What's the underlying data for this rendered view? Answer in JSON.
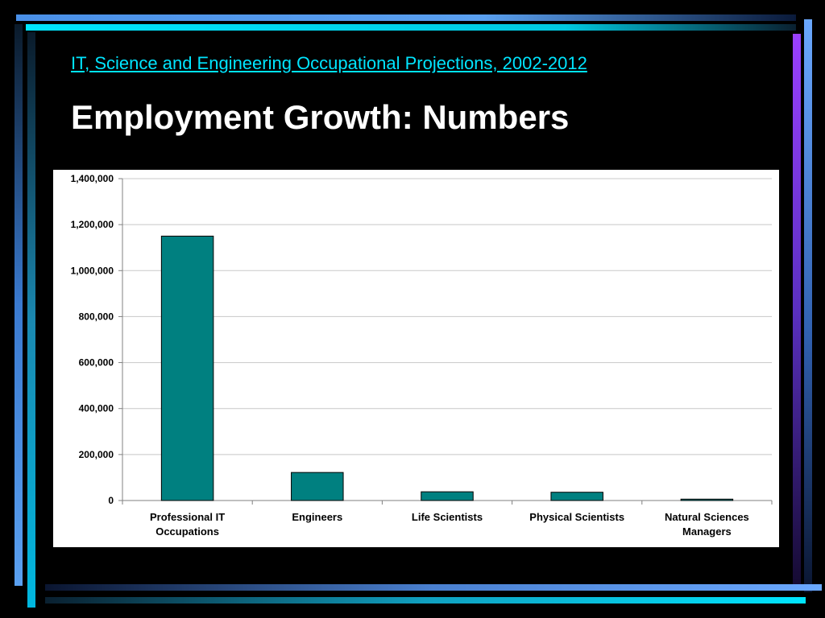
{
  "slide": {
    "subtitle": "IT, Science and Engineering Occupational Projections, 2002-2012",
    "title": "Employment Growth: Numbers"
  },
  "colors": {
    "background": "#000000",
    "subtitle": "#00e5ff",
    "bar_fill": "#008080"
  },
  "chart_data": {
    "type": "bar",
    "categories": [
      [
        "Professional IT",
        "Occupations"
      ],
      [
        "Engineers"
      ],
      [
        "Life Scientists"
      ],
      [
        "Physical Scientists"
      ],
      [
        "Natural Sciences",
        "Managers"
      ]
    ],
    "values": [
      1150000,
      122000,
      38000,
      36000,
      6000
    ],
    "ylim": [
      0,
      1400000
    ],
    "yticks": [
      "0",
      "200,000",
      "400,000",
      "600,000",
      "800,000",
      "1,000,000",
      "1,200,000",
      "1,400,000"
    ],
    "grid": true,
    "legend": "none"
  }
}
